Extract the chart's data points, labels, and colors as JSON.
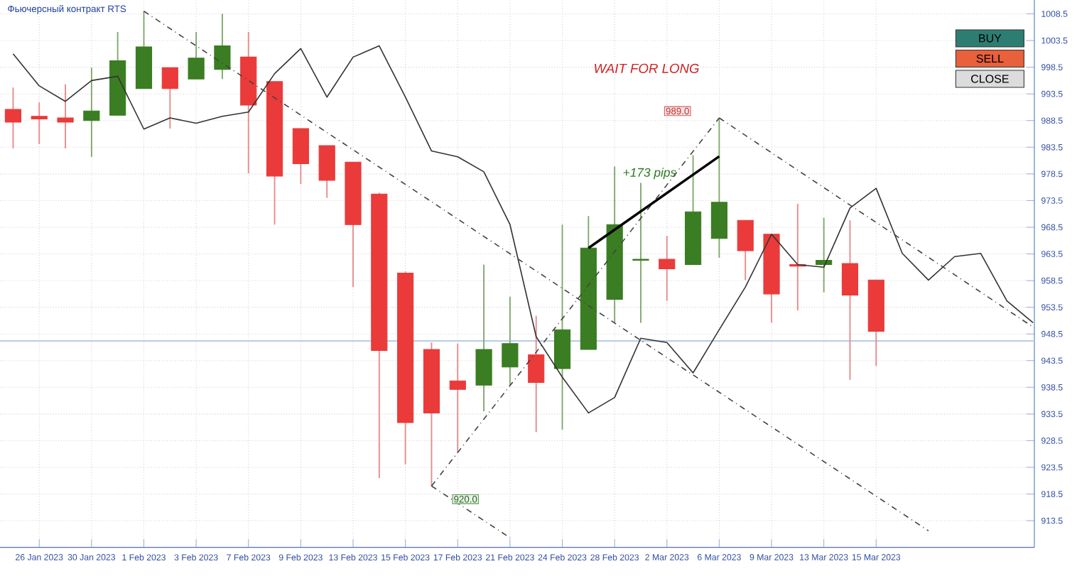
{
  "chart_data": {
    "type": "candlestick",
    "title": "Фьючерсный контракт RTS",
    "categories": [
      null,
      "26 Jan 2023",
      null,
      "30 Jan 2023",
      null,
      "1 Feb 2023",
      null,
      "3 Feb 2023",
      null,
      "7 Feb 2023",
      null,
      "9 Feb 2023",
      null,
      "13 Feb 2023",
      null,
      "15 Feb 2023",
      null,
      "17 Feb 2023",
      null,
      "21 Feb 2023",
      null,
      "24 Feb 2023",
      null,
      "28 Feb 2023",
      null,
      "2 Mar 2023",
      null,
      "6 Mar 2023",
      null,
      "9 Mar 2023",
      null,
      "13 Mar 2023",
      null,
      "15 Mar 2023",
      null,
      null,
      null,
      null,
      null,
      null
    ],
    "ohlc": [
      [
        990.6,
        994.7,
        983.3,
        988.2
      ],
      [
        989.3,
        991.9,
        984.1,
        988.8
      ],
      [
        989.0,
        995.3,
        983.3,
        988.2
      ],
      [
        988.5,
        998.4,
        981.7,
        990.3
      ],
      [
        989.5,
        1005.1,
        989.5,
        999.7
      ],
      [
        994.5,
        1009.0,
        994.5,
        1002.3
      ],
      [
        998.4,
        998.4,
        987.0,
        994.5
      ],
      [
        996.3,
        1005.1,
        996.3,
        1000.2
      ],
      [
        998.1,
        1008.5,
        996.3,
        1002.5
      ],
      [
        1000.4,
        1005.1,
        978.6,
        991.4
      ],
      [
        995.8,
        995.8,
        969.0,
        978.1
      ],
      [
        987.0,
        987.0,
        976.6,
        980.4
      ],
      [
        983.8,
        983.8,
        974.0,
        977.3
      ],
      [
        980.7,
        980.7,
        957.3,
        969.0
      ],
      [
        974.7,
        975.0,
        921.5,
        945.4
      ],
      [
        959.9,
        960.2,
        924.1,
        931.9
      ],
      [
        945.6,
        946.9,
        920.0,
        933.7
      ],
      [
        939.7,
        946.7,
        926.2,
        938.1
      ],
      [
        938.9,
        961.5,
        934.0,
        945.6
      ],
      [
        942.3,
        955.5,
        938.9,
        946.7
      ],
      [
        944.6,
        951.9,
        930.1,
        939.4
      ],
      [
        942.0,
        969.0,
        930.6,
        949.3
      ],
      [
        945.6,
        970.6,
        945.6,
        964.6
      ],
      [
        955.0,
        979.9,
        950.6,
        969.0
      ],
      [
        962.3,
        976.8,
        950.6,
        962.5
      ],
      [
        962.5,
        966.9,
        954.7,
        960.7
      ],
      [
        961.5,
        982.0,
        961.5,
        971.4
      ],
      [
        966.4,
        989.0,
        962.8,
        973.2
      ],
      [
        969.8,
        969.8,
        958.6,
        964.1
      ],
      [
        967.2,
        967.2,
        950.6,
        956.0
      ],
      [
        961.5,
        972.9,
        952.9,
        961.2
      ],
      [
        961.5,
        970.3,
        956.3,
        962.3
      ],
      [
        961.7,
        969.8,
        939.9,
        955.8
      ],
      [
        958.6,
        958.6,
        942.5,
        949.0
      ],
      null,
      null,
      null,
      null,
      null,
      null
    ],
    "series": [
      {
        "type": "line",
        "color": "#333333",
        "values": [
          1001.0,
          995.0,
          992.1,
          996.0,
          996.8,
          986.9,
          989.0,
          988.0,
          989.3,
          990.1,
          997.3,
          1002.0,
          992.9,
          1000.4,
          1002.5,
          992.9,
          982.8,
          981.7,
          978.9,
          969.0,
          948.0,
          940.4,
          933.7,
          936.6,
          947.7,
          946.9,
          941.2,
          949.3,
          957.3,
          967.2,
          961.5,
          961.0,
          972.1,
          975.8,
          963.6,
          958.6,
          963.0,
          963.6,
          954.7,
          950.6
        ]
      },
      {
        "type": "line",
        "color": "#444444",
        "line_style": "dashed",
        "values": [
          null,
          null,
          null,
          null,
          null,
          1009.0,
          null,
          null,
          null,
          null,
          null,
          null,
          null,
          null,
          null,
          null,
          null,
          null,
          null,
          null,
          null,
          null,
          null,
          null,
          null,
          null,
          null,
          null,
          null,
          null,
          null,
          null,
          null,
          null,
          null,
          911.6,
          null,
          null,
          null,
          null
        ]
      },
      {
        "type": "line",
        "color": "#444444",
        "line_style": "dashed",
        "values": [
          null,
          null,
          null,
          null,
          null,
          null,
          null,
          null,
          null,
          null,
          null,
          null,
          null,
          null,
          null,
          null,
          920.0,
          null,
          null,
          null,
          null,
          null,
          null,
          null,
          null,
          null,
          null,
          989.0,
          null,
          null,
          null,
          null,
          null,
          null,
          null,
          null,
          null,
          null,
          null,
          null
        ]
      },
      {
        "type": "line",
        "color": "#444444",
        "line_style": "dashed",
        "values": [
          null,
          null,
          null,
          null,
          null,
          null,
          null,
          null,
          null,
          null,
          null,
          null,
          null,
          null,
          null,
          null,
          null,
          null,
          null,
          null,
          null,
          null,
          null,
          null,
          null,
          null,
          null,
          989.0,
          null,
          null,
          null,
          null,
          null,
          null,
          null,
          null,
          null,
          null,
          null,
          949.8
        ]
      },
      {
        "type": "line",
        "color": "#444444",
        "line_style": "dashed",
        "values": [
          null,
          null,
          null,
          null,
          null,
          null,
          null,
          null,
          null,
          null,
          null,
          null,
          null,
          null,
          null,
          null,
          920.0,
          null,
          null,
          910.3,
          null,
          null,
          null,
          null,
          null,
          null,
          null,
          null,
          null,
          null,
          null,
          null,
          null,
          null,
          null,
          null,
          null,
          null,
          null,
          null
        ]
      },
      {
        "type": "line",
        "color": "#000000",
        "values": [
          null,
          null,
          null,
          null,
          null,
          null,
          null,
          null,
          null,
          null,
          null,
          null,
          null,
          null,
          null,
          null,
          null,
          null,
          null,
          null,
          null,
          null,
          964.6,
          null,
          null,
          null,
          null,
          981.8,
          null,
          null,
          null,
          null,
          null,
          null,
          null,
          null,
          null,
          null,
          null,
          null
        ]
      }
    ],
    "ylim": [
      908.5,
      1011.1
    ],
    "yticks": [
      913.5,
      918.5,
      923.5,
      928.5,
      933.5,
      938.5,
      943.5,
      948.5,
      953.5,
      958.5,
      963.5,
      968.5,
      973.5,
      978.5,
      983.5,
      988.5,
      993.5,
      998.5,
      1003.5,
      1008.5
    ],
    "ref_lines": [
      {
        "axis": "y",
        "value": 947.2,
        "color": "#b8cce4"
      }
    ],
    "annotations": [
      "WAIT FOR LONG",
      "BUY",
      "SELL",
      "CLOSE",
      "+173 pips",
      "989.0",
      "920.0"
    ],
    "grid": true
  }
}
